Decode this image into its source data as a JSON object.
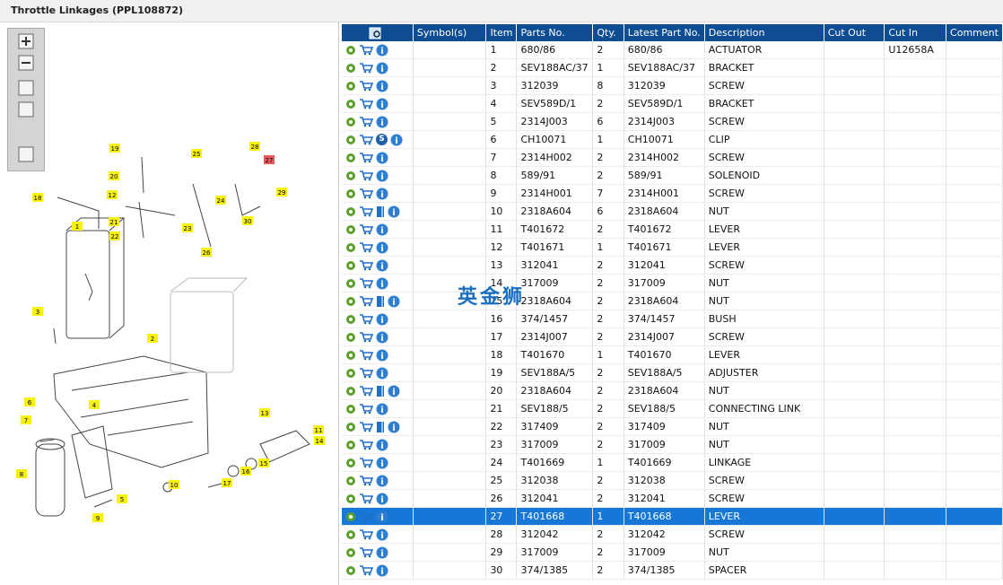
{
  "header": {
    "title": "Throttle Linkages (PPL108872)"
  },
  "watermark": "英金狮",
  "diagram": {
    "callouts": [
      "1",
      "2",
      "3",
      "4",
      "5",
      "6",
      "7",
      "8",
      "9",
      "10",
      "11",
      "12",
      "13",
      "14",
      "15",
      "16",
      "17",
      "18",
      "19",
      "20",
      "21",
      "22",
      "23",
      "24",
      "25",
      "26",
      "27",
      "28",
      "29",
      "30"
    ]
  },
  "table": {
    "columns": [
      "Symbol(s)",
      "Item",
      "Parts No.",
      "Qty.",
      "Latest Part No.",
      "Description",
      "Cut Out",
      "Cut In",
      "Comment"
    ],
    "selected_row": 26,
    "rows": [
      {
        "item": "1",
        "parts_no": "680/86",
        "qty": "2",
        "latest": "680/86",
        "description": "ACTUATOR",
        "cut_in": "U12658A"
      },
      {
        "item": "2",
        "parts_no": "SEV188AC/37",
        "qty": "1",
        "latest": "SEV188AC/37",
        "description": "BRACKET"
      },
      {
        "item": "3",
        "parts_no": "312039",
        "qty": "8",
        "latest": "312039",
        "description": "SCREW"
      },
      {
        "item": "4",
        "parts_no": "SEV589D/1",
        "qty": "2",
        "latest": "SEV589D/1",
        "description": "BRACKET"
      },
      {
        "item": "5",
        "parts_no": "2314J003",
        "qty": "6",
        "latest": "2314J003",
        "description": "SCREW"
      },
      {
        "item": "6",
        "parts_no": "CH10071",
        "qty": "1",
        "latest": "CH10071",
        "description": "CLIP",
        "badge": "S"
      },
      {
        "item": "7",
        "parts_no": "2314H002",
        "qty": "2",
        "latest": "2314H002",
        "description": "SCREW"
      },
      {
        "item": "8",
        "parts_no": "589/91",
        "qty": "2",
        "latest": "589/91",
        "description": "SOLENOID"
      },
      {
        "item": "9",
        "parts_no": "2314H001",
        "qty": "7",
        "latest": "2314H001",
        "description": "SCREW"
      },
      {
        "item": "10",
        "parts_no": "2318A604",
        "qty": "6",
        "latest": "2318A604",
        "description": "NUT",
        "book": true
      },
      {
        "item": "11",
        "parts_no": "T401672",
        "qty": "2",
        "latest": "T401672",
        "description": "LEVER"
      },
      {
        "item": "12",
        "parts_no": "T401671",
        "qty": "1",
        "latest": "T401671",
        "description": "LEVER"
      },
      {
        "item": "13",
        "parts_no": "312041",
        "qty": "2",
        "latest": "312041",
        "description": "SCREW"
      },
      {
        "item": "14",
        "parts_no": "317009",
        "qty": "2",
        "latest": "317009",
        "description": "NUT"
      },
      {
        "item": "15",
        "parts_no": "2318A604",
        "qty": "2",
        "latest": "2318A604",
        "description": "NUT",
        "book": true
      },
      {
        "item": "16",
        "parts_no": "374/1457",
        "qty": "2",
        "latest": "374/1457",
        "description": "BUSH"
      },
      {
        "item": "17",
        "parts_no": "2314J007",
        "qty": "2",
        "latest": "2314J007",
        "description": "SCREW"
      },
      {
        "item": "18",
        "parts_no": "T401670",
        "qty": "1",
        "latest": "T401670",
        "description": "LEVER"
      },
      {
        "item": "19",
        "parts_no": "SEV188A/5",
        "qty": "2",
        "latest": "SEV188A/5",
        "description": "ADJUSTER"
      },
      {
        "item": "20",
        "parts_no": "2318A604",
        "qty": "2",
        "latest": "2318A604",
        "description": "NUT",
        "book": true
      },
      {
        "item": "21",
        "parts_no": "SEV188/5",
        "qty": "2",
        "latest": "SEV188/5",
        "description": "CONNECTING LINK"
      },
      {
        "item": "22",
        "parts_no": "317409",
        "qty": "2",
        "latest": "317409",
        "description": "NUT",
        "book": true
      },
      {
        "item": "23",
        "parts_no": "317009",
        "qty": "2",
        "latest": "317009",
        "description": "NUT"
      },
      {
        "item": "24",
        "parts_no": "T401669",
        "qty": "1",
        "latest": "T401669",
        "description": "LINKAGE"
      },
      {
        "item": "25",
        "parts_no": "312038",
        "qty": "2",
        "latest": "312038",
        "description": "SCREW"
      },
      {
        "item": "26",
        "parts_no": "312041",
        "qty": "2",
        "latest": "312041",
        "description": "SCREW"
      },
      {
        "item": "27",
        "parts_no": "T401668",
        "qty": "1",
        "latest": "T401668",
        "description": "LEVER"
      },
      {
        "item": "28",
        "parts_no": "312042",
        "qty": "2",
        "latest": "312042",
        "description": "SCREW"
      },
      {
        "item": "29",
        "parts_no": "317009",
        "qty": "2",
        "latest": "317009",
        "description": "NUT"
      },
      {
        "item": "30",
        "parts_no": "374/1385",
        "qty": "2",
        "latest": "374/1385",
        "description": "SPACER"
      }
    ]
  }
}
